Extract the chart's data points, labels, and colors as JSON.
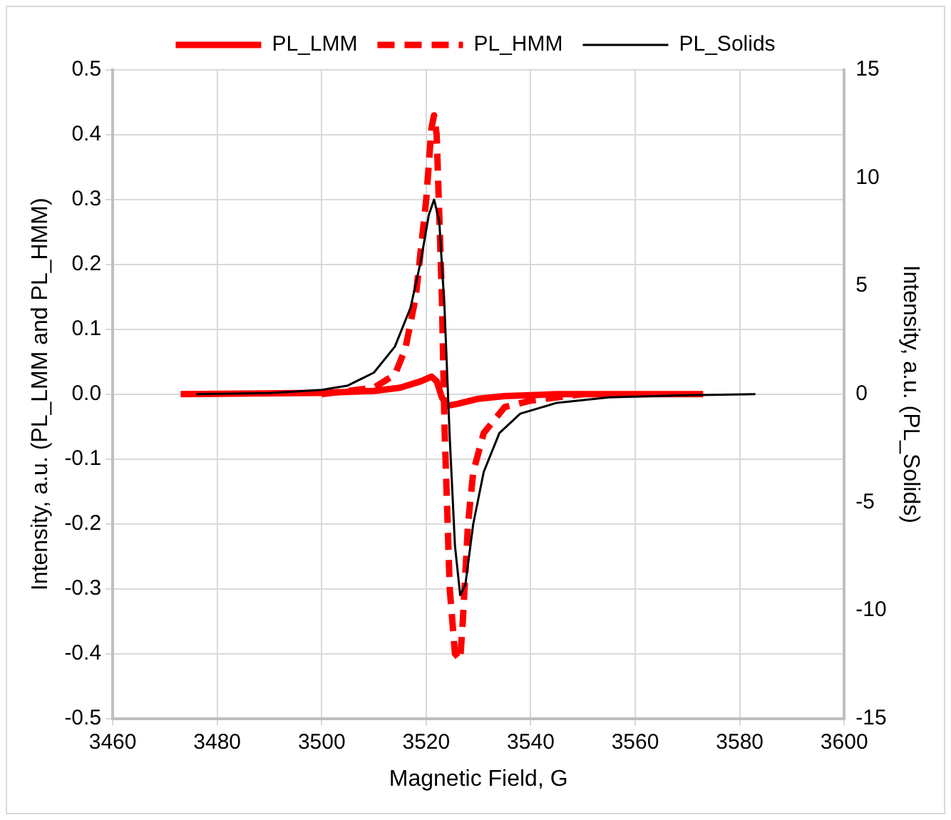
{
  "chart_data": {
    "type": "line",
    "xlabel": "Magnetic Field, G",
    "ylabel": "Intensity, a.u. (PL_LMM and PL_HMM)",
    "y2label": "Intensity, a.u. (PL_Solids)",
    "xlim": [
      3460,
      3600
    ],
    "xticks": [
      3460,
      3480,
      3500,
      3520,
      3540,
      3560,
      3580,
      3600
    ],
    "ylim": [
      -0.5,
      0.5
    ],
    "yticks": [
      -0.5,
      -0.4,
      -0.3,
      -0.2,
      -0.1,
      {
        "value": 0,
        "label": "0.0"
      },
      0.1,
      0.2,
      0.3,
      0.4,
      0.5
    ],
    "y2lim": [
      -15,
      15
    ],
    "y2ticks": [
      -15,
      -10,
      -5,
      0,
      5,
      10,
      15
    ],
    "grid": true,
    "legend": "top",
    "marker": "none",
    "series": [
      {
        "name": "PL_LMM",
        "color": "#ff0000",
        "line_style": "solid",
        "x": [
          3473,
          3500,
          3510,
          3515,
          3519,
          3521,
          3522,
          3523,
          3524,
          3526,
          3530,
          3535,
          3545,
          3573
        ],
        "values": [
          0,
          0.002,
          0.005,
          0.01,
          0.02,
          0.027,
          0.02,
          -0.005,
          -0.018,
          -0.015,
          -0.007,
          -0.003,
          0,
          0
        ]
      },
      {
        "name": "PL_HMM",
        "color": "#ff0000",
        "line_style": "dashed",
        "x": [
          3500,
          3510,
          3514,
          3516,
          3518,
          3520,
          3521,
          3521.5,
          3522,
          3523,
          3523.5,
          3524.5,
          3525.5,
          3526.5,
          3527,
          3528,
          3529,
          3531,
          3535,
          3540,
          3550
        ],
        "values": [
          0,
          0.01,
          0.03,
          0.07,
          0.15,
          0.3,
          0.41,
          0.43,
          0.4,
          0.15,
          -0.05,
          -0.3,
          -0.4,
          -0.41,
          -0.35,
          -0.2,
          -0.12,
          -0.06,
          -0.02,
          -0.01,
          0
        ]
      },
      {
        "name": "PL_Solids",
        "color": "#000000",
        "line_style": "solid",
        "axis": "y2",
        "x": [
          3476,
          3490,
          3500,
          3505,
          3510,
          3514,
          3517,
          3519,
          3520.5,
          3521.5,
          3522.5,
          3523.5,
          3524.5,
          3525.5,
          3526.5,
          3527.5,
          3529,
          3531,
          3534,
          3538,
          3545,
          3555,
          3570,
          3583
        ],
        "values": [
          0,
          0.05,
          0.2,
          0.4,
          1,
          2.2,
          4,
          6.2,
          8.3,
          9,
          8,
          4,
          -2,
          -7,
          -9.3,
          -8.8,
          -6,
          -3.6,
          -1.8,
          -0.9,
          -0.4,
          -0.15,
          -0.05,
          0
        ]
      }
    ]
  }
}
